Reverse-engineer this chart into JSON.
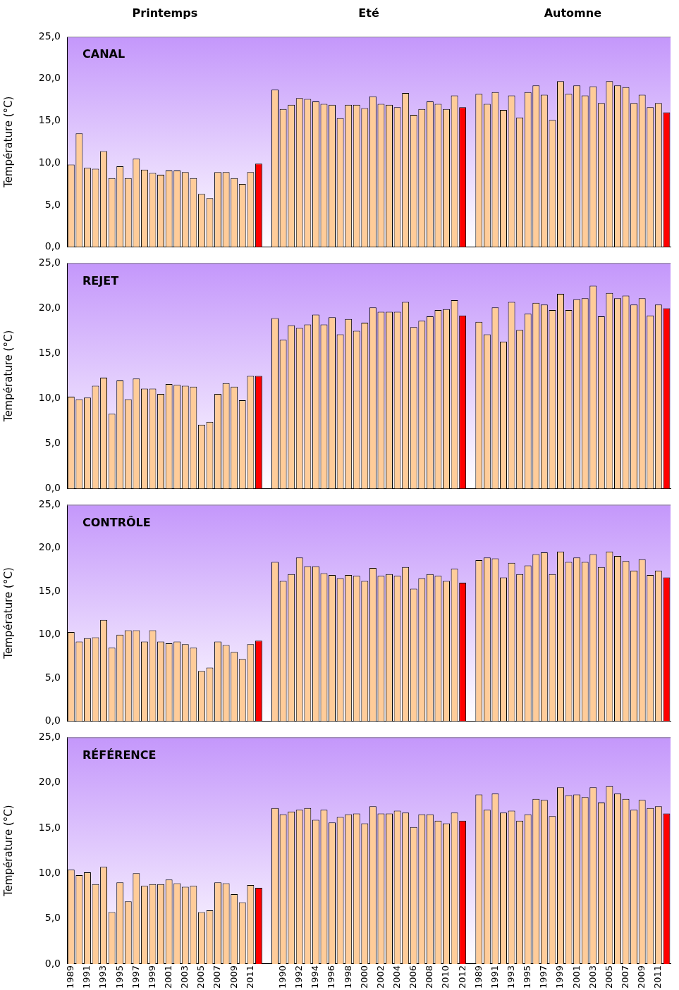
{
  "chart_data": [
    {
      "type": "bar",
      "title": "CANAL",
      "ylabel": "Température (°C)",
      "tick_labels": "y",
      "annotations": [
        "Printemps",
        "Eté",
        "Automne"
      ],
      "categories": [
        "1989",
        null,
        "1991",
        null,
        "1993",
        null,
        "1995",
        null,
        "1997",
        null,
        "1999",
        null,
        "2001",
        null,
        "2003",
        null,
        "2005",
        null,
        "2007",
        null,
        "2009",
        null,
        "2011",
        null,
        null,
        null,
        "1990",
        null,
        "1992",
        null,
        "1994",
        null,
        "1996",
        null,
        "1998",
        null,
        "2000",
        null,
        "2002",
        null,
        "2004",
        null,
        "2006",
        null,
        "2008",
        null,
        "2010",
        null,
        "2012",
        null,
        "1989",
        null,
        "1991",
        null,
        "1993",
        null,
        "1995",
        null,
        "1997",
        null,
        "1999",
        null,
        "2001",
        null,
        "2003",
        null,
        "2005",
        null,
        "2007",
        null,
        "2009",
        null,
        "2011",
        null
      ],
      "values": [
        9.8,
        13.5,
        9.4,
        9.3,
        11.4,
        8.2,
        9.6,
        8.2,
        10.5,
        9.2,
        8.8,
        8.6,
        9.1,
        9.1,
        8.9,
        8.2,
        6.3,
        5.8,
        8.9,
        8.9,
        8.2,
        7.5,
        8.9,
        9.9,
        null,
        18.7,
        16.4,
        16.9,
        17.7,
        17.6,
        17.3,
        17.0,
        16.9,
        15.3,
        16.9,
        16.9,
        16.5,
        17.9,
        17.0,
        16.9,
        16.6,
        18.3,
        15.7,
        16.4,
        17.3,
        17.0,
        16.4,
        18.0,
        16.6,
        null,
        18.2,
        17.0,
        18.4,
        16.3,
        18.0,
        15.4,
        18.4,
        19.2,
        18.1,
        15.1,
        19.7,
        18.2,
        19.2,
        18.0,
        19.1,
        17.1,
        19.7,
        19.2,
        19.0,
        17.1,
        18.1,
        16.6,
        17.1,
        16.0
      ],
      "colors": [
        "#ffcc99",
        "#ffcc99",
        "#ffcc99",
        "#ffcc99",
        "#ffcc99",
        "#ffcc99",
        "#ffcc99",
        "#ffcc99",
        "#ffcc99",
        "#ffcc99",
        "#ffcc99",
        "#ffcc99",
        "#ffcc99",
        "#ffcc99",
        "#ffcc99",
        "#ffcc99",
        "#ffcc99",
        "#ffcc99",
        "#ffcc99",
        "#ffcc99",
        "#ffcc99",
        "#ffcc99",
        "#ffcc99",
        "#ff0000",
        "#ffcc99",
        "#ffcc99",
        "#ffcc99",
        "#ffcc99",
        "#ffcc99",
        "#ffcc99",
        "#ffcc99",
        "#ffcc99",
        "#ffcc99",
        "#ffcc99",
        "#ffcc99",
        "#ffcc99",
        "#ffcc99",
        "#ffcc99",
        "#ffcc99",
        "#ffcc99",
        "#ffcc99",
        "#ffcc99",
        "#ffcc99",
        "#ffcc99",
        "#ffcc99",
        "#ffcc99",
        "#ffcc99",
        "#ffcc99",
        "#ff0000",
        "#ffcc99",
        "#ffcc99",
        "#ffcc99",
        "#ffcc99",
        "#ffcc99",
        "#ffcc99",
        "#ffcc99",
        "#ffcc99",
        "#ffcc99",
        "#ffcc99",
        "#ffcc99",
        "#ffcc99",
        "#ffcc99",
        "#ffcc99",
        "#ffcc99",
        "#ffcc99",
        "#ffcc99",
        "#ffcc99",
        "#ffcc99",
        "#ffcc99",
        "#ffcc99",
        "#ffcc99",
        "#ffcc99",
        "#ffcc99",
        "#ff0000"
      ],
      "ylim": [
        0,
        25
      ],
      "yticks": [
        {
          "value": 0,
          "label": "0,0"
        },
        {
          "value": 5,
          "label": "5,0"
        },
        {
          "value": 10,
          "label": "10,0"
        },
        {
          "value": 15,
          "label": "15,0"
        },
        {
          "value": 20,
          "label": "20,0"
        },
        {
          "value": 25,
          "label": "25,0"
        }
      ]
    },
    {
      "type": "bar",
      "title": "REJET",
      "ylabel": "Température (°C)",
      "tick_labels": "y",
      "categories": [
        "1989",
        null,
        "1991",
        null,
        "1993",
        null,
        "1995",
        null,
        "1997",
        null,
        "1999",
        null,
        "2001",
        null,
        "2003",
        null,
        "2005",
        null,
        "2007",
        null,
        "2009",
        null,
        "2011",
        null,
        null,
        null,
        "1990",
        null,
        "1992",
        null,
        "1994",
        null,
        "1996",
        null,
        "1998",
        null,
        "2000",
        null,
        "2002",
        null,
        "2004",
        null,
        "2006",
        null,
        "2008",
        null,
        "2010",
        null,
        "2012",
        null,
        "1989",
        null,
        "1991",
        null,
        "1993",
        null,
        "1995",
        null,
        "1997",
        null,
        "1999",
        null,
        "2001",
        null,
        "2003",
        null,
        "2005",
        null,
        "2007",
        null,
        "2009",
        null,
        "2011",
        null
      ],
      "values": [
        10.2,
        9.9,
        10.1,
        11.4,
        12.3,
        8.3,
        12.0,
        9.9,
        12.2,
        11.1,
        11.1,
        10.5,
        11.6,
        11.5,
        11.4,
        11.3,
        7.1,
        7.4,
        10.5,
        11.7,
        11.3,
        9.8,
        12.5,
        12.5,
        null,
        18.9,
        16.5,
        18.1,
        17.8,
        18.2,
        19.3,
        18.2,
        19.0,
        17.1,
        18.8,
        17.5,
        18.4,
        20.1,
        19.6,
        19.6,
        19.6,
        20.7,
        17.9,
        18.6,
        19.1,
        19.8,
        19.9,
        20.9,
        19.2,
        null,
        18.5,
        17.1,
        20.1,
        16.3,
        20.7,
        17.6,
        19.4,
        20.6,
        20.4,
        19.8,
        21.6,
        19.8,
        21.0,
        21.1,
        22.5,
        19.1,
        21.7,
        21.1,
        21.4,
        20.4,
        21.1,
        19.2,
        20.4,
        20.0
      ],
      "colors": [
        "#ffcc99",
        "#ffcc99",
        "#ffcc99",
        "#ffcc99",
        "#ffcc99",
        "#ffcc99",
        "#ffcc99",
        "#ffcc99",
        "#ffcc99",
        "#ffcc99",
        "#ffcc99",
        "#ffcc99",
        "#ffcc99",
        "#ffcc99",
        "#ffcc99",
        "#ffcc99",
        "#ffcc99",
        "#ffcc99",
        "#ffcc99",
        "#ffcc99",
        "#ffcc99",
        "#ffcc99",
        "#ffcc99",
        "#ff0000",
        "#ffcc99",
        "#ffcc99",
        "#ffcc99",
        "#ffcc99",
        "#ffcc99",
        "#ffcc99",
        "#ffcc99",
        "#ffcc99",
        "#ffcc99",
        "#ffcc99",
        "#ffcc99",
        "#ffcc99",
        "#ffcc99",
        "#ffcc99",
        "#ffcc99",
        "#ffcc99",
        "#ffcc99",
        "#ffcc99",
        "#ffcc99",
        "#ffcc99",
        "#ffcc99",
        "#ffcc99",
        "#ffcc99",
        "#ffcc99",
        "#ff0000",
        "#ffcc99",
        "#ffcc99",
        "#ffcc99",
        "#ffcc99",
        "#ffcc99",
        "#ffcc99",
        "#ffcc99",
        "#ffcc99",
        "#ffcc99",
        "#ffcc99",
        "#ffcc99",
        "#ffcc99",
        "#ffcc99",
        "#ffcc99",
        "#ffcc99",
        "#ffcc99",
        "#ffcc99",
        "#ffcc99",
        "#ffcc99",
        "#ffcc99",
        "#ffcc99",
        "#ffcc99",
        "#ffcc99",
        "#ffcc99",
        "#ff0000"
      ],
      "ylim": [
        0,
        25
      ],
      "yticks": [
        {
          "value": 0,
          "label": "0,0"
        },
        {
          "value": 5,
          "label": "5,0"
        },
        {
          "value": 10,
          "label": "10,0"
        },
        {
          "value": 15,
          "label": "15,0"
        },
        {
          "value": 20,
          "label": "20,0"
        },
        {
          "value": 25,
          "label": "25,0"
        }
      ]
    },
    {
      "type": "bar",
      "title": "CONTRÔLE",
      "ylabel": "Température (°C)",
      "tick_labels": "y",
      "categories": [
        "1989",
        null,
        "1991",
        null,
        "1993",
        null,
        "1995",
        null,
        "1997",
        null,
        "1999",
        null,
        "2001",
        null,
        "2003",
        null,
        "2005",
        null,
        "2007",
        null,
        "2009",
        null,
        "2011",
        null,
        null,
        null,
        "1990",
        null,
        "1992",
        null,
        "1994",
        null,
        "1996",
        null,
        "1998",
        null,
        "2000",
        null,
        "2002",
        null,
        "2004",
        null,
        "2006",
        null,
        "2008",
        null,
        "2010",
        null,
        "2012",
        null,
        "1989",
        null,
        "1991",
        null,
        "1993",
        null,
        "1995",
        null,
        "1997",
        null,
        "1999",
        null,
        "2001",
        null,
        "2003",
        null,
        "2005",
        null,
        "2007",
        null,
        "2009",
        null,
        "2011",
        null
      ],
      "values": [
        10.3,
        9.2,
        9.6,
        9.7,
        11.7,
        8.5,
        10.0,
        10.5,
        10.5,
        9.2,
        10.5,
        9.2,
        9.0,
        9.2,
        8.9,
        8.5,
        5.8,
        6.2,
        9.2,
        8.8,
        8.0,
        7.2,
        8.9,
        9.3,
        null,
        18.4,
        16.2,
        17.0,
        18.9,
        17.9,
        17.9,
        17.1,
        16.9,
        16.5,
        16.9,
        16.8,
        16.2,
        17.7,
        16.8,
        17.0,
        16.8,
        17.8,
        15.3,
        16.5,
        17.0,
        16.8,
        16.2,
        17.6,
        16.0,
        null,
        18.6,
        18.9,
        18.8,
        16.6,
        18.3,
        17.0,
        18.0,
        19.3,
        19.5,
        17.0,
        19.6,
        18.4,
        18.9,
        18.4,
        19.3,
        17.8,
        19.6,
        19.1,
        18.5,
        17.4,
        18.7,
        16.9,
        17.4,
        16.6
      ],
      "colors": [
        "#ffcc99",
        "#ffcc99",
        "#ffcc99",
        "#ffcc99",
        "#ffcc99",
        "#ffcc99",
        "#ffcc99",
        "#ffcc99",
        "#ffcc99",
        "#ffcc99",
        "#ffcc99",
        "#ffcc99",
        "#ffcc99",
        "#ffcc99",
        "#ffcc99",
        "#ffcc99",
        "#ffcc99",
        "#ffcc99",
        "#ffcc99",
        "#ffcc99",
        "#ffcc99",
        "#ffcc99",
        "#ffcc99",
        "#ff0000",
        "#ffcc99",
        "#ffcc99",
        "#ffcc99",
        "#ffcc99",
        "#ffcc99",
        "#ffcc99",
        "#ffcc99",
        "#ffcc99",
        "#ffcc99",
        "#ffcc99",
        "#ffcc99",
        "#ffcc99",
        "#ffcc99",
        "#ffcc99",
        "#ffcc99",
        "#ffcc99",
        "#ffcc99",
        "#ffcc99",
        "#ffcc99",
        "#ffcc99",
        "#ffcc99",
        "#ffcc99",
        "#ffcc99",
        "#ffcc99",
        "#ff0000",
        "#ffcc99",
        "#ffcc99",
        "#ffcc99",
        "#ffcc99",
        "#ffcc99",
        "#ffcc99",
        "#ffcc99",
        "#ffcc99",
        "#ffcc99",
        "#ffcc99",
        "#ffcc99",
        "#ffcc99",
        "#ffcc99",
        "#ffcc99",
        "#ffcc99",
        "#ffcc99",
        "#ffcc99",
        "#ffcc99",
        "#ffcc99",
        "#ffcc99",
        "#ffcc99",
        "#ffcc99",
        "#ffcc99",
        "#ffcc99",
        "#ff0000"
      ],
      "ylim": [
        0,
        25
      ],
      "yticks": [
        {
          "value": 0,
          "label": "0,0"
        },
        {
          "value": 5,
          "label": "5,0"
        },
        {
          "value": 10,
          "label": "10,0"
        },
        {
          "value": 15,
          "label": "15,0"
        },
        {
          "value": 20,
          "label": "20,0"
        },
        {
          "value": 25,
          "label": "25,0"
        }
      ]
    },
    {
      "type": "bar",
      "title": "RÉFÉRENCE",
      "ylabel": "Température (°C)",
      "categories": [
        "1989",
        null,
        "1991",
        null,
        "1993",
        null,
        "1995",
        null,
        "1997",
        null,
        "1999",
        null,
        "2001",
        null,
        "2003",
        null,
        "2005",
        null,
        "2007",
        null,
        "2009",
        null,
        "2011",
        null,
        null,
        null,
        "1990",
        null,
        "1992",
        null,
        "1994",
        null,
        "1996",
        null,
        "1998",
        null,
        "2000",
        null,
        "2002",
        null,
        "2004",
        null,
        "2006",
        null,
        "2008",
        null,
        "2010",
        null,
        "2012",
        null,
        "1989",
        null,
        "1991",
        null,
        "1993",
        null,
        "1995",
        null,
        "1997",
        null,
        "1999",
        null,
        "2001",
        null,
        "2003",
        null,
        "2005",
        null,
        "2007",
        null,
        "2009",
        null,
        "2011",
        null
      ],
      "values": [
        10.4,
        9.8,
        10.1,
        8.8,
        10.7,
        5.7,
        9.0,
        6.9,
        10.0,
        8.6,
        8.8,
        8.8,
        9.3,
        8.9,
        8.5,
        8.6,
        5.7,
        5.9,
        9.0,
        8.9,
        7.7,
        6.8,
        8.7,
        8.4,
        null,
        17.2,
        16.5,
        16.8,
        17.0,
        17.2,
        15.9,
        17.0,
        15.6,
        16.2,
        16.5,
        16.6,
        15.5,
        17.4,
        16.6,
        16.6,
        16.9,
        16.7,
        15.1,
        16.5,
        16.5,
        15.8,
        15.5,
        16.7,
        15.8,
        null,
        18.7,
        17.0,
        18.8,
        16.7,
        16.9,
        15.8,
        16.5,
        18.2,
        18.1,
        16.3,
        19.5,
        18.6,
        18.7,
        18.4,
        19.5,
        17.8,
        19.6,
        18.8,
        18.2,
        17.0,
        18.1,
        17.2,
        17.4,
        16.6
      ],
      "colors": [
        "#ffcc99",
        "#ffcc99",
        "#ffcc99",
        "#ffcc99",
        "#ffcc99",
        "#ffcc99",
        "#ffcc99",
        "#ffcc99",
        "#ffcc99",
        "#ffcc99",
        "#ffcc99",
        "#ffcc99",
        "#ffcc99",
        "#ffcc99",
        "#ffcc99",
        "#ffcc99",
        "#ffcc99",
        "#ffcc99",
        "#ffcc99",
        "#ffcc99",
        "#ffcc99",
        "#ffcc99",
        "#ffcc99",
        "#ff0000",
        "#ffcc99",
        "#ffcc99",
        "#ffcc99",
        "#ffcc99",
        "#ffcc99",
        "#ffcc99",
        "#ffcc99",
        "#ffcc99",
        "#ffcc99",
        "#ffcc99",
        "#ffcc99",
        "#ffcc99",
        "#ffcc99",
        "#ffcc99",
        "#ffcc99",
        "#ffcc99",
        "#ffcc99",
        "#ffcc99",
        "#ffcc99",
        "#ffcc99",
        "#ffcc99",
        "#ffcc99",
        "#ffcc99",
        "#ffcc99",
        "#ff0000",
        "#ffcc99",
        "#ffcc99",
        "#ffcc99",
        "#ffcc99",
        "#ffcc99",
        "#ffcc99",
        "#ffcc99",
        "#ffcc99",
        "#ffcc99",
        "#ffcc99",
        "#ffcc99",
        "#ffcc99",
        "#ffcc99",
        "#ffcc99",
        "#ffcc99",
        "#ffcc99",
        "#ffcc99",
        "#ffcc99",
        "#ffcc99",
        "#ffcc99",
        "#ffcc99",
        "#ffcc99",
        "#ffcc99",
        "#ffcc99",
        "#ff0000"
      ],
      "ylim": [
        0,
        25
      ],
      "yticks": [
        {
          "value": 0,
          "label": "0,0"
        },
        {
          "value": 5,
          "label": "5,0"
        },
        {
          "value": 10,
          "label": "10,0"
        },
        {
          "value": 15,
          "label": "15,0"
        },
        {
          "value": 20,
          "label": "20,0"
        },
        {
          "value": 25,
          "label": "25,0"
        }
      ]
    }
  ]
}
